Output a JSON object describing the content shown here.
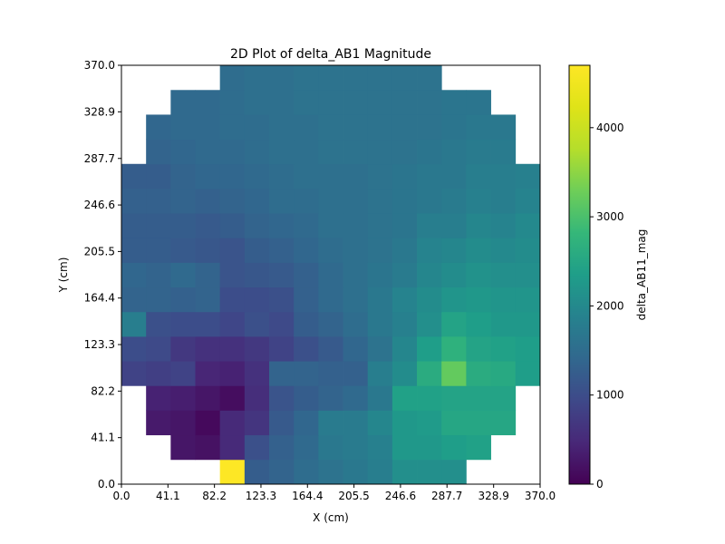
{
  "chart_data": {
    "type": "heatmap",
    "title": "2D Plot of delta_AB1 Magnitude",
    "xlabel": "X (cm)",
    "ylabel": "Y (cm)",
    "xlim": [
      0,
      370
    ],
    "ylim": [
      0,
      370
    ],
    "x_ticks": [
      "0.0",
      "41.1",
      "82.2",
      "123.3",
      "164.4",
      "205.5",
      "246.6",
      "287.7",
      "328.9",
      "370.0"
    ],
    "y_ticks": [
      "0.0",
      "41.1",
      "82.2",
      "123.3",
      "164.4",
      "205.5",
      "246.6",
      "287.7",
      "328.9",
      "370.0"
    ],
    "colorbar": {
      "label": "delta_AB11_mag",
      "min": 0,
      "max": 4700,
      "ticks": [
        "0",
        "1000",
        "2000",
        "3000",
        "4000"
      ],
      "tick_values": [
        0,
        1000,
        2000,
        3000,
        4000
      ],
      "colormap": "viridis"
    },
    "grid": false,
    "cell_size_cm": 21.76,
    "rows_bottom_to_top": [
      [
        null,
        null,
        null,
        null,
        4700,
        1250,
        1350,
        1500,
        1600,
        1700,
        1800,
        2100,
        2100,
        2100,
        null,
        null,
        null
      ],
      [
        null,
        null,
        250,
        200,
        500,
        1050,
        1300,
        1450,
        1700,
        1750,
        1850,
        2250,
        2250,
        2350,
        2400,
        null,
        null
      ],
      [
        null,
        300,
        250,
        100,
        500,
        650,
        1200,
        1400,
        1750,
        1750,
        1950,
        2250,
        2300,
        2500,
        2500,
        2500,
        null
      ],
      [
        null,
        400,
        350,
        250,
        150,
        550,
        1100,
        1250,
        1350,
        1450,
        1700,
        2400,
        2400,
        2450,
        2450,
        2450,
        null
      ],
      [
        850,
        800,
        850,
        450,
        400,
        600,
        1350,
        1350,
        1300,
        1300,
        1800,
        2050,
        2600,
        3200,
        2600,
        2550,
        2350
      ],
      [
        1000,
        950,
        700,
        600,
        600,
        700,
        850,
        1050,
        1200,
        1400,
        1600,
        1950,
        2350,
        2700,
        2450,
        2400,
        2350
      ],
      [
        1800,
        1050,
        1000,
        1000,
        900,
        1050,
        950,
        1250,
        1350,
        1500,
        1700,
        1850,
        2100,
        2450,
        2350,
        2250,
        2250
      ],
      [
        1350,
        1350,
        1300,
        1350,
        1000,
        1000,
        1050,
        1300,
        1450,
        1550,
        1700,
        1900,
        2050,
        2200,
        2250,
        2200,
        2200
      ],
      [
        1400,
        1350,
        1450,
        1350,
        1100,
        1150,
        1200,
        1300,
        1450,
        1550,
        1650,
        1750,
        1950,
        2050,
        2150,
        2100,
        2100
      ],
      [
        1250,
        1250,
        1200,
        1150,
        1100,
        1250,
        1300,
        1400,
        1500,
        1550,
        1600,
        1700,
        1900,
        1950,
        2050,
        2000,
        2050
      ],
      [
        1250,
        1250,
        1250,
        1200,
        1250,
        1350,
        1400,
        1450,
        1550,
        1550,
        1600,
        1650,
        1800,
        1800,
        1950,
        1900,
        2000
      ],
      [
        1300,
        1300,
        1350,
        1300,
        1350,
        1400,
        1500,
        1500,
        1550,
        1550,
        1600,
        1650,
        1700,
        1750,
        1850,
        1800,
        1900
      ],
      [
        1250,
        1250,
        1350,
        1400,
        1400,
        1450,
        1500,
        1550,
        1550,
        1550,
        1600,
        1650,
        1700,
        1700,
        1800,
        1800,
        1850
      ],
      [
        null,
        1350,
        1400,
        1450,
        1450,
        1500,
        1550,
        1550,
        1600,
        1600,
        1600,
        1600,
        1650,
        1700,
        1750,
        1750,
        null
      ],
      [
        null,
        1400,
        1450,
        1450,
        1500,
        1500,
        1550,
        1550,
        1600,
        1600,
        1600,
        1600,
        1600,
        1650,
        1700,
        1700,
        null
      ],
      [
        null,
        null,
        1450,
        1450,
        1500,
        1550,
        1550,
        1600,
        1600,
        1600,
        1600,
        1600,
        1600,
        1650,
        1650,
        null,
        null
      ],
      [
        null,
        null,
        null,
        null,
        1500,
        1550,
        1550,
        1600,
        1600,
        1600,
        1600,
        1600,
        1600,
        null,
        null,
        null,
        null
      ]
    ]
  }
}
